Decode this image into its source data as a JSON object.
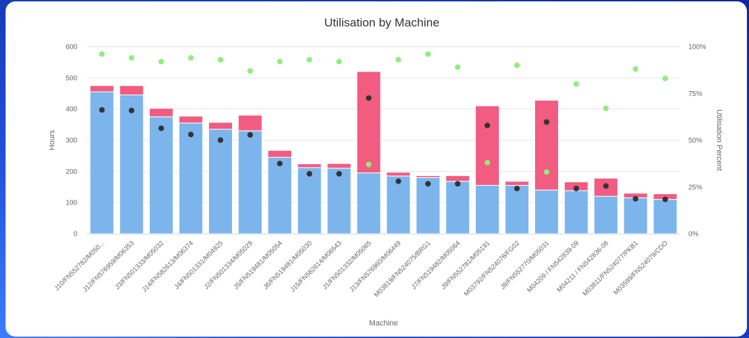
{
  "chart_data": {
    "type": "bar",
    "title": "Utilisation by Machine",
    "xlabel": "Machine",
    "ylabel": "Hours",
    "y2label": "Utilisation Percent",
    "ylim": [
      0,
      600
    ],
    "y2lim": [
      0,
      100
    ],
    "yticks": [
      "0",
      "100",
      "200",
      "300",
      "400",
      "500",
      "600"
    ],
    "y2ticks": [
      "0%",
      "25%",
      "50%",
      "75%",
      "100%"
    ],
    "stacked": true,
    "grid": true,
    "legend": "none",
    "categories": [
      "J10/FN552782/M050...",
      "J12/FN576959/M06353",
      "J3/FN501333/M05032",
      "J14/FN582613/M06374",
      "J4/FN501331/M04925",
      "J2/FN501334/M05029",
      "J5/FN519481/M05054",
      "J6/FN519481/M05030",
      "J15/FN582614/M06543",
      "J1/FN501332/M05065",
      "J13/FN576960/M06449",
      "M03819/FN524075/BRG1",
      "J7/FN519482/M05064",
      "J9/FN552781/M05191",
      "M03792/FN524078/FG02",
      "J8/FN552770/M05031",
      "M04209 / FN542839-09",
      "M04211 / FN542836-08",
      "M03811/FN524077/PKB1",
      "M03599/FN524079/CDO"
    ],
    "series": [
      {
        "axis": "left",
        "kind": "bar",
        "color": "#7cb5ec",
        "values": [
          455,
          445,
          375,
          355,
          335,
          330,
          245,
          212,
          210,
          195,
          185,
          180,
          168,
          155,
          155,
          140,
          138,
          120,
          115,
          110
        ]
      },
      {
        "axis": "left",
        "kind": "bar",
        "color": "#f15c80",
        "values": [
          20,
          30,
          27,
          22,
          22,
          50,
          22,
          12,
          15,
          325,
          12,
          6,
          18,
          255,
          13,
          288,
          28,
          58,
          15,
          18
        ]
      },
      {
        "axis": "left",
        "kind": "scatter",
        "color": "#333333",
        "values": [
          397,
          395,
          338,
          318,
          300,
          317,
          225,
          192,
          192,
          435,
          168,
          160,
          160,
          347,
          145,
          358,
          145,
          153,
          112,
          110
        ]
      },
      {
        "axis": "right",
        "kind": "scatter",
        "color": "#90ed7d",
        "values": [
          96,
          94,
          92,
          94,
          93,
          87,
          92,
          93,
          92,
          37,
          93,
          96,
          89,
          38,
          90,
          33,
          80,
          67,
          88,
          83
        ]
      }
    ]
  }
}
